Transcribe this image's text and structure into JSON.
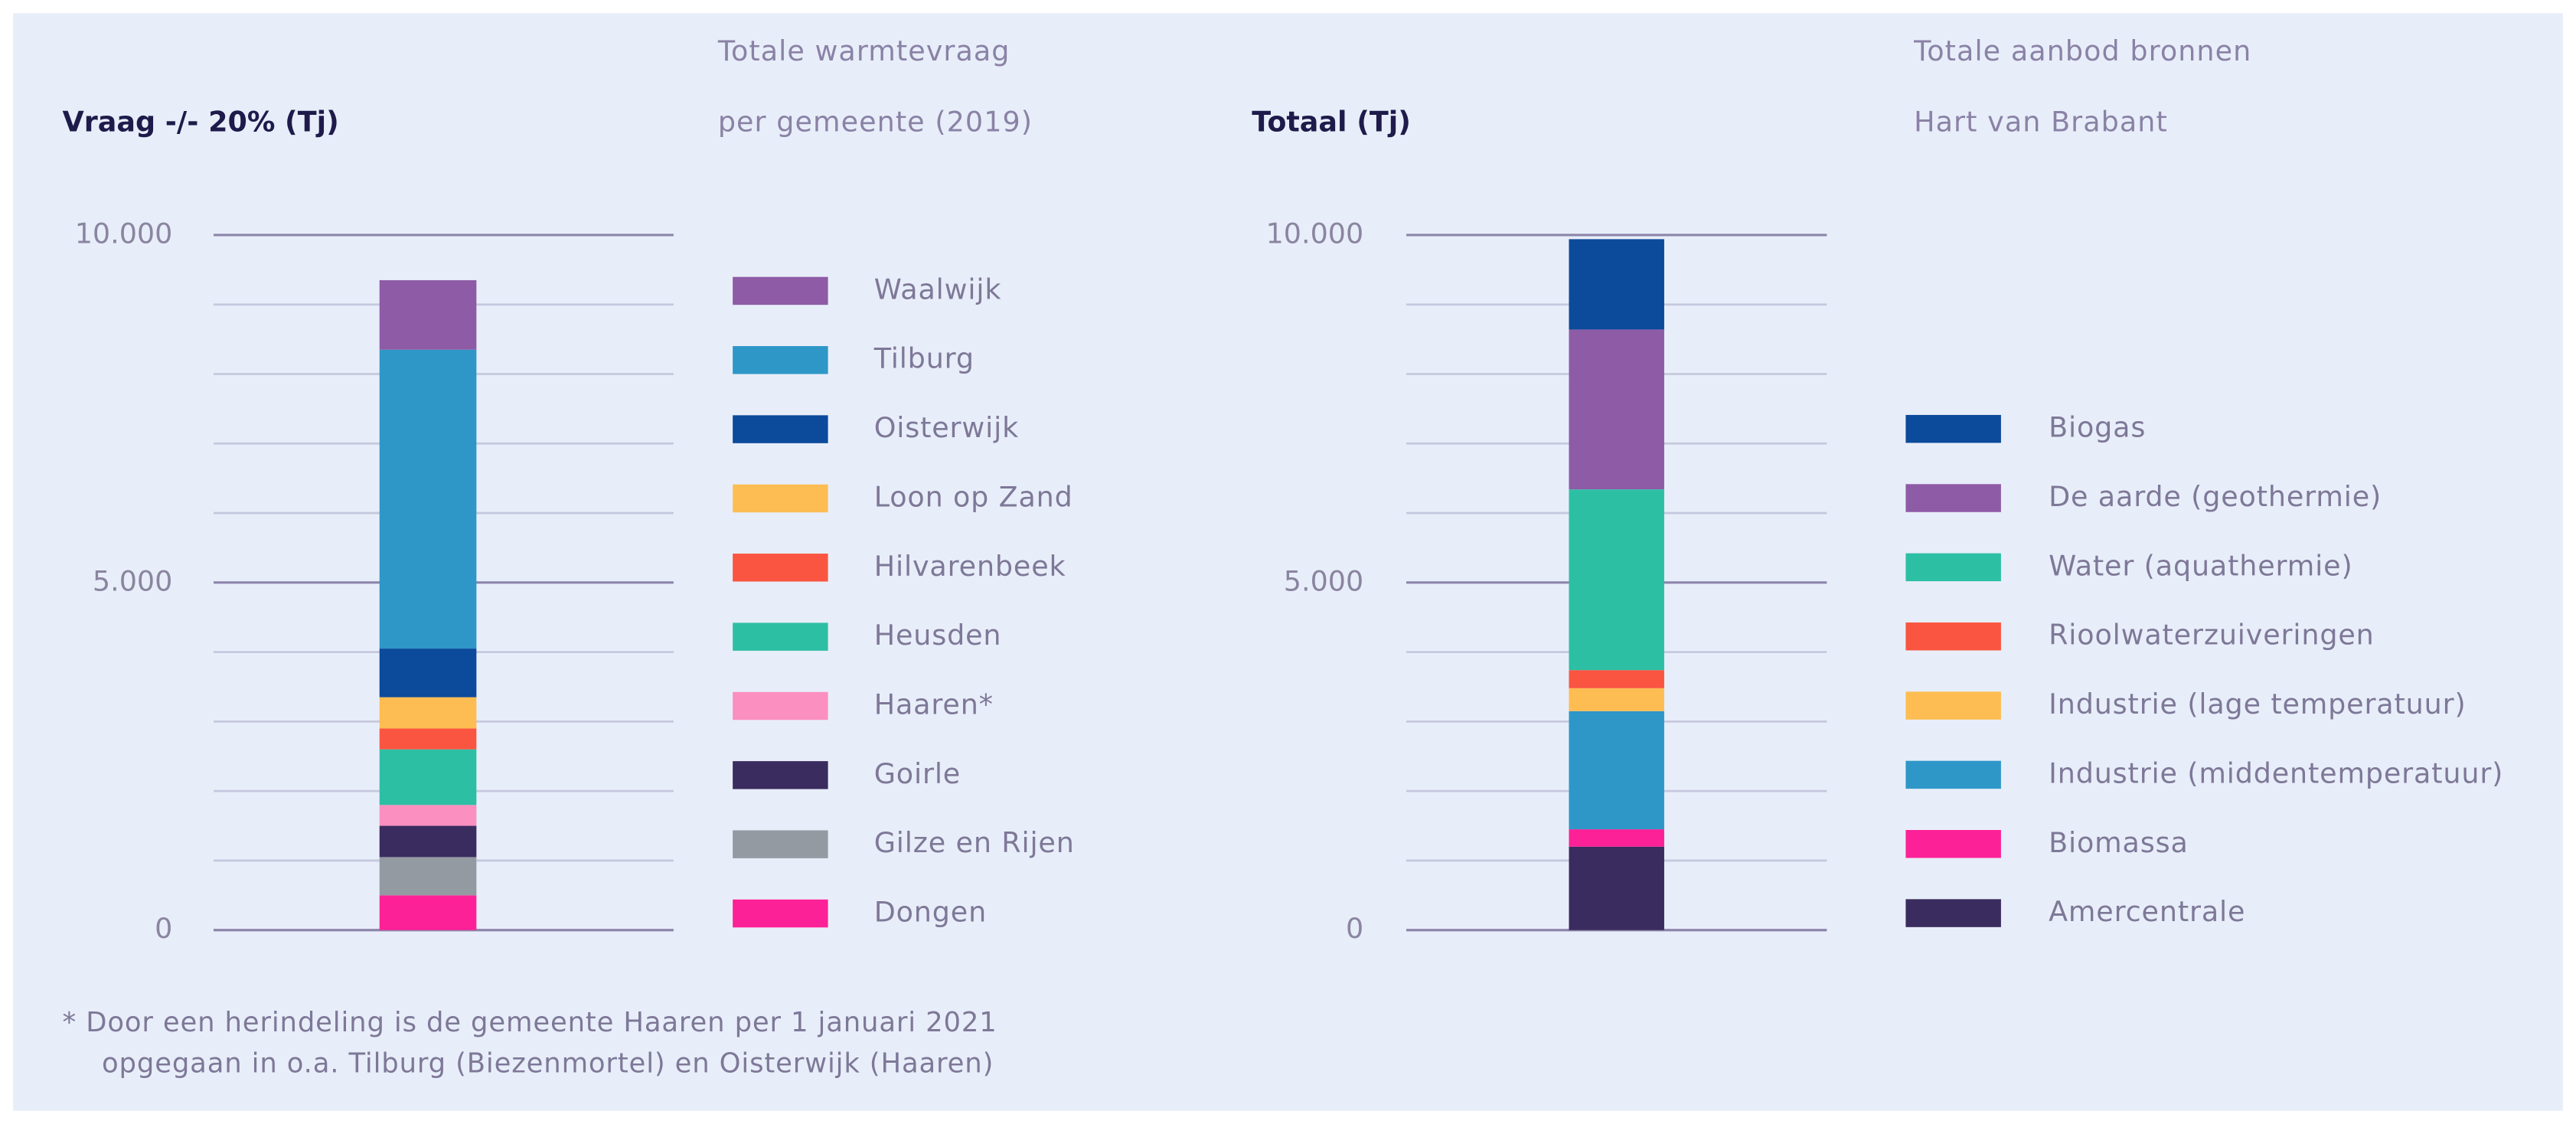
{
  "chart_data": [
    {
      "type": "stacked-bar",
      "title": "Vraag -/- 20% (Tj)",
      "subtitle": [
        "Totale warmtevraag",
        "per gemeente (2019)"
      ],
      "ylim": [
        0,
        10000
      ],
      "yticks": [
        {
          "value": 0,
          "label": "0"
        },
        {
          "value": 5000,
          "label": "5.000"
        },
        {
          "value": 10000,
          "label": "10.000"
        }
      ],
      "ygrid": [
        1000,
        2000,
        3000,
        4000,
        6000,
        7000,
        8000,
        9000
      ],
      "series": [
        {
          "name": "Waalwijk",
          "color": "#8e5ba6",
          "values": [
            1000
          ]
        },
        {
          "name": "Tilburg",
          "color": "#2e97c8",
          "values": [
            4300
          ]
        },
        {
          "name": "Oisterwijk",
          "color": "#0c4a9b",
          "values": [
            700
          ]
        },
        {
          "name": "Loon op Zand",
          "color": "#fdbd52",
          "values": [
            450
          ]
        },
        {
          "name": "Hilvarenbeek",
          "color": "#fa5541",
          "values": [
            300
          ]
        },
        {
          "name": "Heusden",
          "color": "#2dbfa4",
          "values": [
            800
          ]
        },
        {
          "name": "Haaren*",
          "color": "#fb8fc0",
          "values": [
            300
          ]
        },
        {
          "name": "Goirle",
          "color": "#3a2c5e",
          "values": [
            450
          ]
        },
        {
          "name": "Gilze en Rijen",
          "color": "#949aa1",
          "values": [
            550
          ]
        },
        {
          "name": "Dongen",
          "color": "#fc2196",
          "values": [
            500
          ]
        }
      ]
    },
    {
      "type": "stacked-bar",
      "title": "Totaal (Tj)",
      "subtitle": [
        "Totale aanbod bronnen",
        "Hart van Brabant"
      ],
      "ylim": [
        0,
        10000
      ],
      "yticks": [
        {
          "value": 0,
          "label": "0"
        },
        {
          "value": 5000,
          "label": "5.000"
        },
        {
          "value": 10000,
          "label": "10.000"
        }
      ],
      "ygrid": [
        1000,
        2000,
        3000,
        4000,
        6000,
        7000,
        8000,
        9000
      ],
      "series": [
        {
          "name": "Biogas",
          "color": "#0c4a9b",
          "values": [
            1300
          ]
        },
        {
          "name": "De aarde (geothermie)",
          "color": "#8e5ba6",
          "values": [
            2300
          ]
        },
        {
          "name": "Water (aquathermie)",
          "color": "#2dbfa4",
          "values": [
            2600
          ]
        },
        {
          "name": "Rioolwaterzuiveringen",
          "color": "#fa5541",
          "values": [
            260
          ]
        },
        {
          "name": "Industrie (lage temperatuur)",
          "color": "#fdbd52",
          "values": [
            330
          ]
        },
        {
          "name": "Industrie (middentemperatuur)",
          "color": "#2e97c8",
          "values": [
            1700
          ]
        },
        {
          "name": "Biomassa",
          "color": "#fc2196",
          "values": [
            250
          ]
        },
        {
          "name": "Amercentrale",
          "color": "#3a2c5e",
          "values": [
            1200
          ]
        }
      ]
    }
  ],
  "footnote": [
    "*  Door een herindeling is de gemeente Haaren per 1 januari 2021",
    "opgegaan in o.a. Tilburg (Biezenmortel) en Oisterwijk (Haaren)"
  ]
}
